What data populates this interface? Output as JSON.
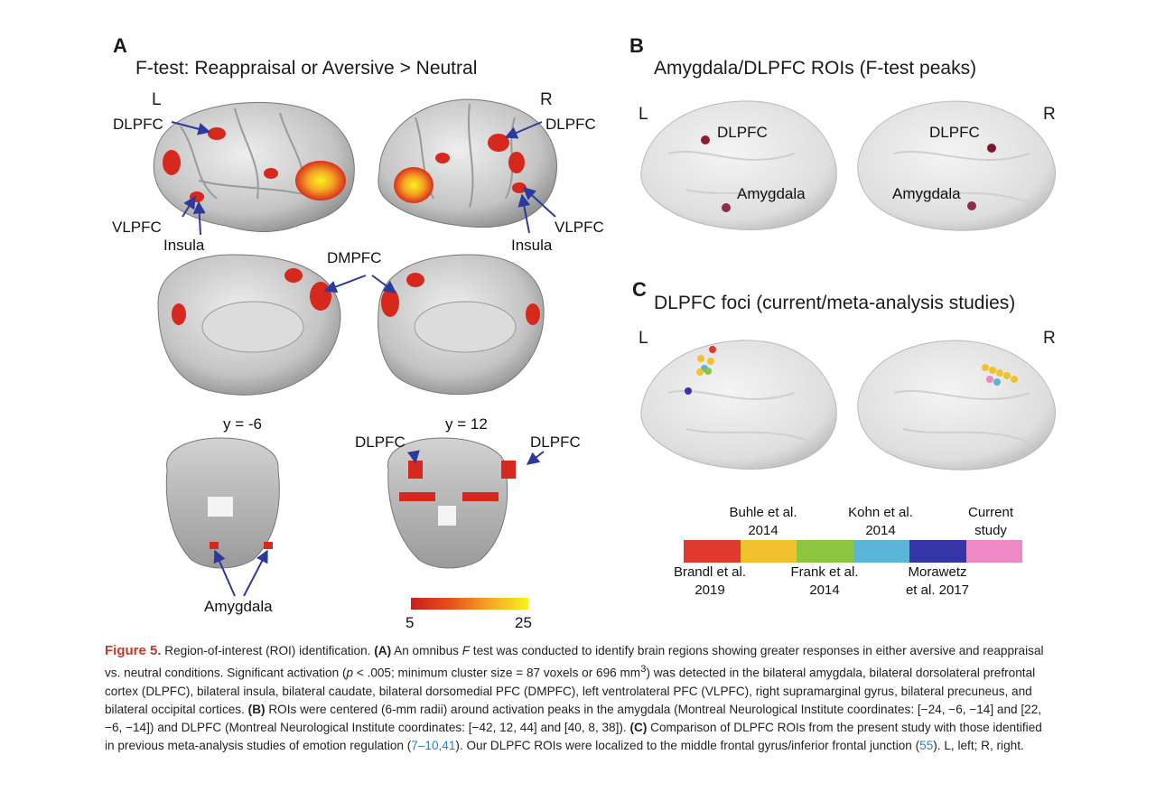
{
  "panel_a": {
    "letter": "A",
    "title": "F-test: Reappraisal or Aversive > Neutral",
    "left": "L",
    "right": "R",
    "labels": {
      "dlpfc_left": "DLPFC",
      "dlpfc_right": "DLPFC",
      "vlpfc_left": "VLPFC",
      "vlpfc_right": "VLPFC",
      "insula_left": "Insula",
      "insula_right": "Insula",
      "dmpfc": "DMPFC",
      "y_neg6": "y = -6",
      "y_12": "y = 12",
      "dlpfc_cor_left": "DLPFC",
      "dlpfc_cor_right": "DLPFC",
      "amygdala": "Amygdala"
    },
    "colorbar": {
      "min": "5",
      "max": "25",
      "colors": [
        "#c81e1e",
        "#e8501a",
        "#f5a623",
        "#f7f31a"
      ]
    }
  },
  "panel_b": {
    "letter": "B",
    "title": "Amygdala/DLPFC ROIs (F-test peaks)",
    "left": "L",
    "right": "R",
    "labels": {
      "dlpfc_l": "DLPFC",
      "amyg_l": "Amygdala",
      "dlpfc_r": "DLPFC",
      "amyg_r": "Amygdala"
    }
  },
  "panel_c": {
    "letter": "C",
    "title": "DLPFC foci (current/meta-analysis studies)",
    "left": "L",
    "right": "R",
    "legend": [
      {
        "color": "#e03a2f",
        "label_line1": "Brandl et al.",
        "label_line2": "2019",
        "position": "below"
      },
      {
        "color": "#f2c12e",
        "label_line1": "Buhle et al.",
        "label_line2": "2014",
        "position": "above"
      },
      {
        "color": "#8cc63f",
        "label_line1": "Frank et al.",
        "label_line2": "2014",
        "position": "below"
      },
      {
        "color": "#5bb5d8",
        "label_line1": "Kohn et al.",
        "label_line2": "2014",
        "position": "above"
      },
      {
        "color": "#3535a8",
        "label_line1": "Morawetz",
        "label_line2": "et al. 2017",
        "position": "below"
      },
      {
        "color": "#ef89c5",
        "label_line1": "Current",
        "label_line2": "study",
        "position": "above"
      }
    ]
  },
  "caption": {
    "fig_label": "Figure 5.",
    "t1": " Region-of-interest (ROI) identification. ",
    "a_label": "(A)",
    "t2": " An omnibus ",
    "f_italic": "F",
    "t3": " test was conducted to identify brain regions showing greater responses in either aversive and reappraisal vs. neutral conditions. Significant activation (",
    "p_italic": "p",
    "t4": " < .005; minimum cluster size = 87 voxels or 696 mm",
    "sup3": "3",
    "t5": ") was detected in the bilateral amygdala, bilateral dorsolateral prefrontal cortex (DLPFC), bilateral insula, bilateral caudate, bilateral dorsomedial PFC (DMPFC), left ventrolateral PFC (VLPFC), right supramarginal gyrus, bilateral precuneus, and bilateral occipital cortices. ",
    "b_label": "(B)",
    "t6": " ROIs were centered (6-mm radii) around activation peaks in the amygdala (Montreal Neurological Institute coordinates: [−24, −6, −14] and [22, −6, −14]) and DLPFC (Montreal Neurological Institute coordinates: [−42, 12, 44] and [40, 8, 38]). ",
    "c_label": "(C)",
    "t7": " Comparison of DLPFC ROIs from the present study with those identified in previous meta-analysis studies of emotion regulation (",
    "ref1": "7–10,41",
    "t8": "). Our DLPFC ROIs were localized to the middle frontal gyrus/inferior frontal junction (",
    "ref2": "55",
    "t9": "). L, left; R, right."
  }
}
